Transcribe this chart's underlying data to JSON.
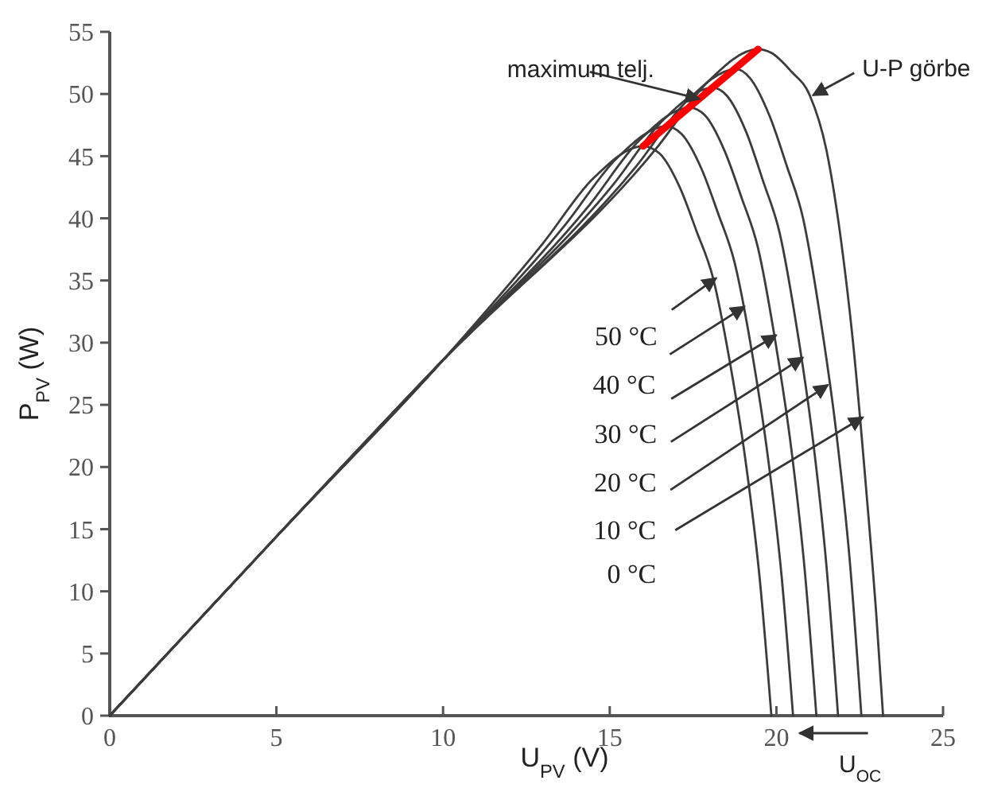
{
  "chart_data": {
    "type": "line",
    "xlabel": "U$_{PV}$ (V)",
    "ylabel": "P$_{PV}$ (W)",
    "xlim": [
      0,
      25
    ],
    "ylim": [
      0,
      55
    ],
    "xticks": [
      0,
      5,
      10,
      15,
      20,
      25
    ],
    "yticks": [
      0,
      5,
      10,
      15,
      20,
      25,
      30,
      35,
      40,
      45,
      50,
      55
    ],
    "series": [
      {
        "color": "#3c3c3c",
        "x": [
          0,
          5,
          10,
          13,
          14.5,
          16,
          16.5,
          17.1,
          17.6,
          18.1,
          18.6,
          19.1,
          19.5,
          19.85
        ],
        "values": [
          0,
          14.4,
          28.6,
          38,
          43.2,
          45.8,
          45.2,
          42.5,
          39,
          35.2,
          28.5,
          20,
          11,
          0
        ]
      },
      {
        "color": "#3c3c3c",
        "x": [
          0,
          5,
          10,
          13.7,
          15.2,
          16.7,
          17.15,
          17.75,
          18.25,
          18.75,
          19.25,
          19.75,
          20.15,
          20.5
        ],
        "values": [
          0,
          14.4,
          28.6,
          39.6,
          44.8,
          47.4,
          46.8,
          44,
          40.4,
          36.4,
          29.5,
          20.7,
          11.4,
          0
        ]
      },
      {
        "color": "#3c3c3c",
        "x": [
          0,
          5,
          10,
          14.4,
          15.9,
          17.4,
          17.85,
          18.45,
          18.95,
          19.45,
          19.95,
          20.45,
          20.85,
          21.2
        ],
        "values": [
          0,
          14.4,
          28.6,
          41.1,
          46.3,
          48.9,
          48.3,
          45.4,
          41.7,
          37.6,
          30.4,
          21.4,
          11.7,
          0
        ]
      },
      {
        "color": "#3c3c3c",
        "x": [
          0,
          5,
          10,
          15.1,
          16.6,
          18.1,
          18.5,
          19.1,
          19.6,
          20.1,
          20.6,
          21.1,
          21.5,
          21.85
        ],
        "values": [
          0,
          14.4,
          28.6,
          42.7,
          47.9,
          50.5,
          49.9,
          46.9,
          43,
          38.8,
          31.4,
          22.1,
          12.1,
          0
        ]
      },
      {
        "color": "#3c3c3c",
        "x": [
          0,
          5,
          10,
          15.8,
          17.3,
          18.8,
          19.2,
          19.8,
          20.3,
          20.8,
          21.3,
          21.8,
          22.2,
          22.55
        ],
        "values": [
          0,
          14.4,
          28.6,
          44.2,
          49.4,
          52,
          51.3,
          48.2,
          44.3,
          40,
          32.3,
          22.7,
          12.5,
          0
        ]
      },
      {
        "color": "#3c3c3c",
        "x": [
          0,
          5,
          10,
          16.45,
          17.95,
          19.45,
          19.85,
          20.45,
          21.0,
          21.5,
          21.95,
          22.3,
          22.7,
          23.0,
          23.2
        ],
        "values": [
          0,
          14.4,
          28.6,
          45.8,
          51,
          53.6,
          53.3,
          51.8,
          49.9,
          45.5,
          38,
          30,
          18,
          8,
          0
        ]
      },
      {
        "type": "line",
        "color": "#ff0000",
        "x": [
          16,
          19.45
        ],
        "values": [
          45.8,
          53.6
        ]
      }
    ],
    "annotations": [
      {
        "text": "maximum telj.",
        "x": 17.6,
        "y": 49.6
      },
      {
        "text": "U-P görbe",
        "x": 21.0,
        "y": 49.9
      },
      {
        "text": "50 °C",
        "x": 18.1,
        "y": 35.2
      },
      {
        "text": "40 °C",
        "x": 18.95,
        "y": 32.9
      },
      {
        "text": "30 °C",
        "x": 19.9,
        "y": 30.6
      },
      {
        "text": "20 °C",
        "x": 20.7,
        "y": 28.8
      },
      {
        "text": "10 °C",
        "x": 21.45,
        "y": 26.6
      },
      {
        "text": "0 °C",
        "x": 22.5,
        "y": 24
      },
      {
        "text": "U$_{OC}$",
        "x": 20.6,
        "y": 0
      }
    ]
  }
}
